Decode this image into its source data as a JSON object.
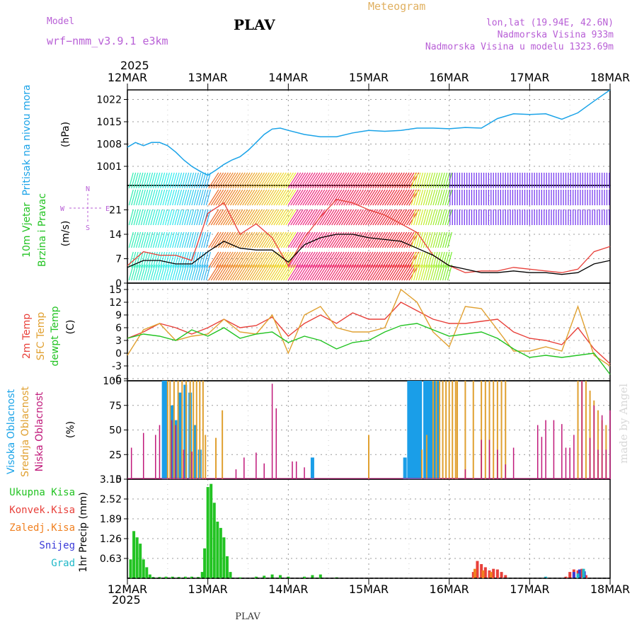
{
  "header": {
    "model_label": "Model",
    "model_name": "wrf−nmm_v3.9.1  e3km",
    "station": "PLAV",
    "meteogram_label": "Meteogram",
    "lonlat": "lon,lat (19.94E, 42.6N)",
    "elevation": "Nadmorska Visina 933m",
    "model_elevation": "Nadmorska Visina u modelu 1323.69m",
    "year_top": "2025",
    "year_bottom": "2025",
    "footer_station": "PLAV",
    "watermark": "made by Angel"
  },
  "colors": {
    "pressure": "#1aa3e8",
    "temp2m": "#e8403a",
    "sfc": "#e0a030",
    "dewpt": "#22c322",
    "high_cloud": "#1a9ee8",
    "mid_cloud": "#e0a030",
    "low_cloud": "#c0187a",
    "total_precip": "#22c322",
    "conv_precip": "#e8403a",
    "frz_precip": "#f08020",
    "snow": "#3a3ad8",
    "hail": "#20b8c8",
    "header_purple": "#b85fd6",
    "header_orange": "#e0b060"
  },
  "chart_data": [
    {
      "type": "line",
      "panel": "pressure",
      "title": "Pritisak na nivou mora",
      "ylabel": "Pritisak na nivou mora",
      "unit": "(hPa)",
      "x_ticks": [
        "12MAR",
        "13MAR",
        "14MAR",
        "15MAR",
        "16MAR",
        "17MAR",
        "18MAR"
      ],
      "ylim": [
        995,
        1025
      ],
      "yticks": [
        1001,
        1008,
        1015,
        1022
      ],
      "x_days": [
        0,
        0.1,
        0.2,
        0.3,
        0.4,
        0.5,
        0.6,
        0.7,
        0.8,
        0.9,
        1.0,
        1.1,
        1.2,
        1.3,
        1.4,
        1.5,
        1.6,
        1.7,
        1.8,
        1.9,
        2.0,
        2.2,
        2.4,
        2.6,
        2.8,
        3.0,
        3.2,
        3.4,
        3.6,
        3.8,
        4.0,
        4.2,
        4.4,
        4.6,
        4.8,
        5.0,
        5.2,
        5.4,
        5.6,
        5.8,
        6.0
      ],
      "values": [
        1007,
        1008.5,
        1007.5,
        1008.5,
        1008.5,
        1007.5,
        1005.5,
        1003,
        1001,
        999.5,
        998.2,
        999.8,
        1001.6,
        1003,
        1004,
        1006,
        1008.5,
        1011,
        1012.7,
        1013,
        1012.3,
        1011,
        1010.3,
        1010.3,
        1011.5,
        1012.3,
        1012,
        1012.3,
        1013,
        1013,
        1012.8,
        1013.2,
        1013,
        1016,
        1017.5,
        1017.3,
        1017.5,
        1015.8,
        1017.8,
        1021.5,
        1025
      ]
    },
    {
      "type": "line",
      "panel": "wind",
      "title": "10m Vjetar Brzina i Pravac",
      "ylabel_lines": [
        "10m Vjetar",
        "Brzina i Pravac"
      ],
      "unit": "(m/s)",
      "legend_compass": [
        "N",
        "W",
        "E",
        "S"
      ],
      "ylim": [
        0,
        28
      ],
      "yticks": [
        0,
        7,
        14,
        21
      ],
      "x_days": [
        0,
        0.2,
        0.4,
        0.6,
        0.8,
        1.0,
        1.2,
        1.4,
        1.6,
        1.8,
        2.0,
        2.2,
        2.4,
        2.6,
        2.8,
        3.0,
        3.2,
        3.4,
        3.6,
        3.8,
        4.0,
        4.2,
        4.4,
        4.6,
        4.8,
        5.0,
        5.2,
        5.4,
        5.6,
        5.8,
        6.0
      ],
      "series": [
        {
          "name": "wind speed",
          "color": "#000000",
          "values": [
            4.5,
            6.5,
            6.5,
            5.5,
            5.5,
            9,
            12,
            10,
            9.5,
            9.5,
            6,
            11,
            13,
            14,
            14,
            13,
            12.5,
            12,
            10,
            8,
            5,
            4,
            3,
            3,
            3.5,
            3,
            3,
            2.5,
            3,
            5.5,
            6.5
          ]
        },
        {
          "name": "gust",
          "color": "#e8403a",
          "values": [
            5,
            9,
            8,
            8,
            6.5,
            20,
            23,
            14,
            17,
            13,
            5,
            13,
            19,
            24,
            23,
            21,
            19.5,
            17,
            14.5,
            8,
            5,
            3,
            3.5,
            3.5,
            4.5,
            4,
            3.5,
            3,
            4,
            9,
            10.5
          ]
        }
      ]
    },
    {
      "type": "line",
      "panel": "temperature",
      "title": "2m Temp / SFC Temp / dewpt Temp",
      "ylabels": [
        "2m Temp",
        "SFC Temp",
        "dewpt Temp"
      ],
      "unit": "(C)",
      "ylim": [
        -6.5,
        16.5
      ],
      "yticks": [
        -6,
        -3,
        0,
        3,
        6,
        9,
        12,
        15
      ],
      "x_days": [
        0,
        0.2,
        0.4,
        0.6,
        0.8,
        1.0,
        1.2,
        1.4,
        1.6,
        1.8,
        2.0,
        2.2,
        2.4,
        2.6,
        2.8,
        3.0,
        3.2,
        3.4,
        3.6,
        3.8,
        4.0,
        4.2,
        4.4,
        4.6,
        4.8,
        5.0,
        5.2,
        5.4,
        5.6,
        5.8,
        6.0
      ],
      "series": [
        {
          "name": "2m Temp",
          "values": [
            3.5,
            5,
            7,
            6,
            4.5,
            6,
            8,
            6,
            6.5,
            8.5,
            4,
            7,
            9,
            7,
            9.5,
            8,
            8,
            12,
            10,
            8,
            7,
            7,
            7.5,
            8,
            5,
            3.5,
            3,
            2,
            6,
            1,
            -2.5
          ]
        },
        {
          "name": "SFC Temp",
          "values": [
            -0.5,
            5.5,
            7,
            3,
            4,
            4.5,
            8,
            5,
            4.5,
            9,
            0,
            9,
            11,
            6,
            5,
            5,
            6,
            15,
            12,
            5,
            1.5,
            11,
            10.5,
            5.5,
            0.5,
            0.5,
            1.5,
            0.5,
            11,
            -0.5,
            -3
          ]
        },
        {
          "name": "dewpt Temp",
          "values": [
            3.5,
            4.5,
            4,
            3,
            5.5,
            4,
            6,
            3.5,
            4.5,
            5,
            2.5,
            4,
            3,
            1,
            2.5,
            3,
            5,
            6.5,
            7,
            5.5,
            4,
            4.5,
            5,
            3.5,
            1,
            -1,
            -0.5,
            -1,
            -0.5,
            0,
            -5
          ]
        }
      ]
    },
    {
      "type": "bar",
      "panel": "clouds",
      "title": "Visoka / Srednja / Niska Oblacnost",
      "ylabels": [
        "Visoka Oblacnost",
        "Srednja Oblacnost",
        "Niska Oblacnost"
      ],
      "unit": "(%)",
      "ylim": [
        0,
        100
      ],
      "yticks": [
        0,
        25,
        50,
        75,
        100
      ],
      "series": [
        {
          "name": "Visoka Oblacnost",
          "x_days": [
            0.45,
            0.48,
            0.55,
            0.6,
            0.65,
            0.72,
            0.78,
            0.84,
            0.9,
            2.3,
            3.45,
            3.5,
            3.53,
            3.56,
            3.6,
            3.64,
            3.7,
            3.74,
            3.78,
            3.82,
            3.86
          ],
          "values": [
            100,
            100,
            75,
            60,
            88,
            96,
            88,
            55,
            30,
            22,
            22,
            100,
            100,
            100,
            100,
            100,
            100,
            100,
            100,
            100,
            100
          ]
        },
        {
          "name": "Srednja Oblacnost",
          "x_days": [
            0.5,
            0.53,
            0.58,
            0.63,
            0.68,
            0.73,
            0.78,
            0.82,
            0.86,
            0.9,
            0.94,
            0.97,
            1.1,
            1.18,
            3.0,
            3.66,
            3.72,
            3.8,
            3.84,
            3.88,
            3.92,
            3.96,
            4.0,
            4.04,
            4.08,
            4.1,
            4.2,
            4.3,
            4.4,
            4.45,
            4.5,
            4.55,
            4.6,
            4.65,
            4.7,
            5.6,
            5.65,
            5.7,
            5.75,
            5.8,
            5.85,
            5.9,
            5.95
          ],
          "values": [
            100,
            100,
            100,
            100,
            100,
            100,
            100,
            100,
            100,
            100,
            100,
            45,
            42,
            70,
            45,
            30,
            45,
            100,
            100,
            100,
            100,
            100,
            100,
            100,
            100,
            100,
            100,
            100,
            100,
            100,
            100,
            100,
            100,
            100,
            100,
            100,
            100,
            100,
            90,
            80,
            70,
            60,
            55
          ]
        },
        {
          "name": "Niska Oblacnost",
          "x_days": [
            0.05,
            0.2,
            0.35,
            0.4,
            0.55,
            0.6,
            0.7,
            0.8,
            1.35,
            1.45,
            1.6,
            1.7,
            1.8,
            1.85,
            2.05,
            2.1,
            2.2,
            4.2,
            4.4,
            4.5,
            4.6,
            4.7,
            4.8,
            5.1,
            5.15,
            5.2,
            5.3,
            5.4,
            5.45,
            5.5,
            5.55,
            5.65,
            5.75,
            5.8,
            5.85,
            5.9,
            5.95,
            6.0
          ],
          "values": [
            32,
            47,
            45,
            55,
            60,
            55,
            30,
            28,
            10,
            22,
            27,
            16,
            97,
            72,
            18,
            18,
            12,
            10,
            40,
            40,
            30,
            15,
            32,
            55,
            43,
            60,
            60,
            56,
            32,
            32,
            45,
            100,
            42,
            75,
            30,
            65,
            30,
            70
          ]
        }
      ]
    },
    {
      "type": "bar",
      "panel": "precipitation",
      "title": "1hr Precip",
      "ylabel": "1hr Precip",
      "unit": "(mm)",
      "legend": [
        "Ukupna Kisa",
        "Konvek.Kisa",
        "Zaledj.Kisa",
        "Snijeg",
        "Grad"
      ],
      "ylim": [
        0,
        3.15
      ],
      "yticks": [
        0.63,
        1.26,
        1.89,
        2.52,
        3.15
      ],
      "series": [
        {
          "name": "Ukupna Kisa",
          "x_days": [
            0.04,
            0.08,
            0.12,
            0.16,
            0.2,
            0.24,
            0.28,
            0.32,
            0.4,
            0.48,
            0.56,
            0.64,
            0.72,
            0.8,
            0.88,
            0.93,
            0.96,
            1.0,
            1.04,
            1.08,
            1.12,
            1.16,
            1.2,
            1.24,
            1.28,
            1.4,
            1.6,
            1.7,
            1.8,
            1.9,
            2.0,
            2.2,
            2.3,
            2.4,
            2.6
          ],
          "values": [
            0.6,
            1.5,
            1.3,
            1.1,
            0.6,
            0.35,
            0.12,
            0.04,
            0.04,
            0.05,
            0.05,
            0.04,
            0.05,
            0.05,
            0.04,
            0.2,
            0.95,
            2.9,
            3.0,
            2.4,
            1.8,
            1.6,
            1.3,
            0.7,
            0.2,
            0.03,
            0.05,
            0.08,
            0.12,
            0.1,
            0.05,
            0.05,
            0.1,
            0.12,
            0.03
          ]
        },
        {
          "name": "Konvek.Kisa",
          "x_days": [
            4.3,
            4.35,
            4.4,
            4.45,
            4.5,
            4.55,
            4.6,
            4.65,
            4.7,
            5.45,
            5.5,
            5.55,
            5.6,
            5.65,
            5.7
          ],
          "values": [
            0.2,
            0.55,
            0.45,
            0.35,
            0.25,
            0.3,
            0.28,
            0.2,
            0.1,
            0.05,
            0.2,
            0.28,
            0.25,
            0.3,
            0.1
          ]
        },
        {
          "name": "Zaledj.Kisa",
          "x_days": [
            4.32,
            4.42,
            4.52
          ],
          "values": [
            0.3,
            0.25,
            0.2
          ]
        },
        {
          "name": "Snijeg",
          "x_days": [
            5.55,
            5.62,
            5.68
          ],
          "values": [
            0.2,
            0.28,
            0.22
          ]
        },
        {
          "name": "Grad",
          "x_days": [
            5.2,
            5.6,
            5.67
          ],
          "values": [
            0.05,
            0.15,
            0.3
          ]
        }
      ]
    }
  ]
}
